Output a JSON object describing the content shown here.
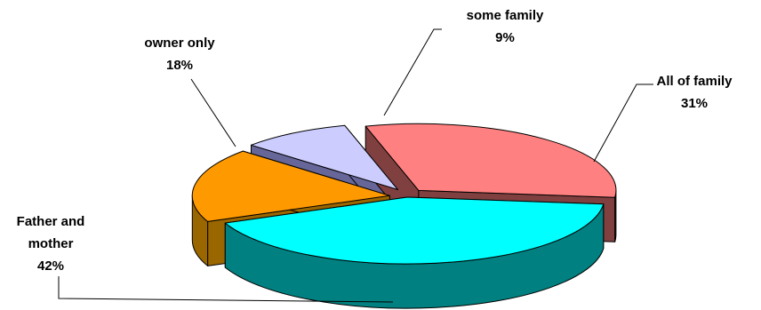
{
  "chart_data": {
    "type": "pie",
    "three_d": true,
    "title": "",
    "legend": "none",
    "slices": [
      {
        "name": "Father and mother",
        "label_lines": [
          "Father and",
          "mother"
        ],
        "value": 42,
        "percent_label": "42%",
        "top_color": "#00FFFF",
        "side_color": "#008080",
        "exploded": false
      },
      {
        "name": "owner only",
        "label_lines": [
          "owner only"
        ],
        "value": 18,
        "percent_label": "18%",
        "top_color": "#FF9900",
        "side_color": "#996600",
        "exploded": true
      },
      {
        "name": "some family",
        "label_lines": [
          "some family"
        ],
        "value": 9,
        "percent_label": "9%",
        "top_color": "#CCCCFF",
        "side_color": "#666699",
        "exploded": true
      },
      {
        "name": "All of family",
        "label_lines": [
          "All of family"
        ],
        "value": 31,
        "percent_label": "31%",
        "top_color": "#FF8080",
        "side_color": "#804040",
        "exploded": true
      }
    ]
  }
}
